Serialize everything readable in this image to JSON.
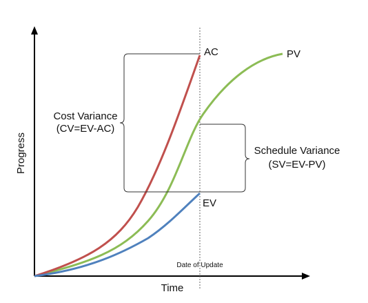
{
  "axes": {
    "y_label": "Progress",
    "x_label": "Time"
  },
  "curves": {
    "ac": {
      "label": "AC",
      "color": "#c0504d"
    },
    "pv": {
      "label": "PV",
      "color": "#8cbc55"
    },
    "ev": {
      "label": "EV",
      "color": "#4f81bd"
    }
  },
  "update_marker": {
    "label": "Date of Update"
  },
  "cost_variance": {
    "title": "Cost Variance",
    "formula": "(CV=EV-AC)"
  },
  "schedule_variance": {
    "title": "Schedule Variance",
    "formula": "(SV=EV-PV)"
  },
  "colors": {
    "axis": "#000000",
    "bracket": "#333333",
    "marker": "#555555"
  }
}
